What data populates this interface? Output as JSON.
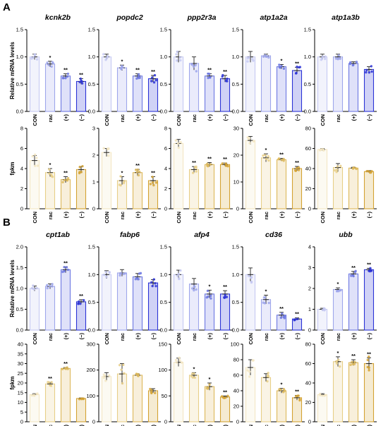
{
  "panels": [
    {
      "letter": "A"
    },
    {
      "letter": "B"
    }
  ],
  "colors": {
    "blue": [
      "#c5c9f2",
      "#9ea6eb",
      "#6c77e2",
      "#2b33d6"
    ],
    "gold": [
      "#f3e6c3",
      "#e7cf88",
      "#ddb85a",
      "#d3a233"
    ]
  },
  "chart_data": [
    {
      "type": "bar",
      "panel": "A",
      "row": 0,
      "col": 0,
      "title": "kcnk2b",
      "ylabel": "Relative mRNA levels",
      "categories": [
        "CON",
        "rac",
        "(+)",
        "(−)"
      ],
      "values": [
        1.0,
        0.87,
        0.65,
        0.55
      ],
      "errors": [
        0.05,
        0.05,
        0.04,
        0.05
      ],
      "significance": [
        "",
        "*",
        "**",
        "**"
      ],
      "ylim": [
        0,
        1.5
      ],
      "yticks": [
        "0.0",
        "0.5",
        "1.0",
        "1.5"
      ],
      "palette": "blue"
    },
    {
      "type": "bar",
      "panel": "A",
      "row": 0,
      "col": 1,
      "title": "popdc2",
      "ylabel": "",
      "categories": [
        "CON",
        "rac",
        "(+)",
        "(−)"
      ],
      "values": [
        1.0,
        0.8,
        0.65,
        0.6
      ],
      "errors": [
        0.05,
        0.05,
        0.04,
        0.06
      ],
      "significance": [
        "",
        "*",
        "**",
        "**"
      ],
      "ylim": [
        0,
        1.5
      ],
      "yticks": [
        "0.0",
        "0.5",
        "1.0",
        "1.5"
      ],
      "palette": "blue"
    },
    {
      "type": "bar",
      "panel": "A",
      "row": 0,
      "col": 2,
      "title": "ppp2r3a",
      "ylabel": "",
      "categories": [
        "CON",
        "rac",
        "(+)",
        "(−)"
      ],
      "values": [
        1.0,
        0.88,
        0.65,
        0.6
      ],
      "errors": [
        0.1,
        0.12,
        0.04,
        0.06
      ],
      "significance": [
        "",
        "",
        "**",
        "**"
      ],
      "ylim": [
        0,
        1.5
      ],
      "yticks": [
        "0.0",
        "0.5",
        "1.0",
        "1.5"
      ],
      "palette": "blue"
    },
    {
      "type": "bar",
      "panel": "A",
      "row": 0,
      "col": 3,
      "title": "atp1a2a",
      "ylabel": "",
      "categories": [
        "CON",
        "rac",
        "(+)",
        "(−)"
      ],
      "values": [
        1.0,
        1.02,
        0.82,
        0.75
      ],
      "errors": [
        0.1,
        0.03,
        0.04,
        0.06
      ],
      "significance": [
        "",
        "",
        "*",
        "**"
      ],
      "ylim": [
        0,
        1.5
      ],
      "yticks": [
        "0.0",
        "0.5",
        "1.0",
        "1.5"
      ],
      "palette": "blue"
    },
    {
      "type": "bar",
      "panel": "A",
      "row": 0,
      "col": 4,
      "title": "atp1a3b",
      "ylabel": "",
      "categories": [
        "CON",
        "rac",
        "(+)",
        "(−)"
      ],
      "values": [
        1.0,
        1.0,
        0.88,
        0.77
      ],
      "errors": [
        0.05,
        0.05,
        0.03,
        0.05
      ],
      "significance": [
        "",
        "",
        "",
        ""
      ],
      "ylim": [
        0,
        1.5
      ],
      "yticks": [
        "0.0",
        "0.5",
        "1.0",
        "1.5"
      ],
      "palette": "blue"
    },
    {
      "type": "bar",
      "panel": "A",
      "row": 1,
      "col": 0,
      "title": "",
      "ylabel": "fpkm",
      "categories": [
        "CON",
        "rac",
        "(+)",
        "(−)"
      ],
      "values": [
        4.8,
        3.6,
        2.9,
        3.9
      ],
      "errors": [
        0.5,
        0.4,
        0.3,
        0.3
      ],
      "significance": [
        "",
        "*",
        "**",
        ""
      ],
      "ylim": [
        0,
        8
      ],
      "yticks": [
        "0",
        "2",
        "4",
        "6",
        "8"
      ],
      "palette": "gold"
    },
    {
      "type": "bar",
      "panel": "A",
      "row": 1,
      "col": 1,
      "title": "",
      "ylabel": "",
      "categories": [
        "CON",
        "rac",
        "(+)",
        "(−)"
      ],
      "values": [
        2.1,
        1.05,
        1.35,
        1.05
      ],
      "errors": [
        0.15,
        0.15,
        0.12,
        0.15
      ],
      "significance": [
        "",
        "*",
        "**",
        "**"
      ],
      "ylim": [
        0,
        3
      ],
      "yticks": [
        "0",
        "1",
        "2",
        "3"
      ],
      "palette": "gold"
    },
    {
      "type": "bar",
      "panel": "A",
      "row": 1,
      "col": 2,
      "title": "",
      "ylabel": "",
      "categories": [
        "CON",
        "rac",
        "(+)",
        "(−)"
      ],
      "values": [
        6.5,
        3.9,
        4.4,
        4.4
      ],
      "errors": [
        0.4,
        0.3,
        0.2,
        0.15
      ],
      "significance": [
        "",
        "**",
        "**",
        "**"
      ],
      "ylim": [
        0,
        8
      ],
      "yticks": [
        "0",
        "2",
        "4",
        "6",
        "8"
      ],
      "palette": "gold"
    },
    {
      "type": "bar",
      "panel": "A",
      "row": 1,
      "col": 3,
      "title": "",
      "ylabel": "",
      "categories": [
        "CON",
        "rac",
        "(+)",
        "(−)"
      ],
      "values": [
        25.5,
        19,
        18.3,
        15
      ],
      "errors": [
        1.5,
        1.5,
        0.5,
        0.8
      ],
      "significance": [
        "",
        "*",
        "**",
        "**"
      ],
      "ylim": [
        0,
        30
      ],
      "yticks": [
        "0",
        "10",
        "20",
        "30"
      ],
      "palette": "gold"
    },
    {
      "type": "bar",
      "panel": "A",
      "row": 1,
      "col": 4,
      "title": "",
      "ylabel": "",
      "categories": [
        "CON",
        "rac",
        "(+)",
        "(−)"
      ],
      "values": [
        59,
        41,
        40.5,
        37
      ],
      "errors": [
        1.0,
        4.0,
        0.8,
        1.0
      ],
      "significance": [
        "",
        "",
        "",
        ""
      ],
      "ylim": [
        0,
        80
      ],
      "yticks": [
        "0",
        "20",
        "40",
        "60",
        "80"
      ],
      "palette": "gold"
    },
    {
      "type": "bar",
      "panel": "B",
      "row": 2,
      "col": 0,
      "title": "cpt1ab",
      "ylabel": "Relative mRNA levels",
      "categories": [
        "CON",
        "rac",
        "(+)",
        "(−)"
      ],
      "values": [
        1.0,
        1.05,
        1.45,
        0.68
      ],
      "errors": [
        0.06,
        0.06,
        0.07,
        0.05
      ],
      "significance": [
        "",
        "",
        "**",
        "**"
      ],
      "ylim": [
        0,
        2.0
      ],
      "yticks": [
        "0.0",
        "0.5",
        "1.0",
        "1.5",
        "2.0"
      ],
      "palette": "blue"
    },
    {
      "type": "bar",
      "panel": "B",
      "row": 2,
      "col": 1,
      "title": "fabp6",
      "ylabel": "",
      "categories": [
        "CON",
        "rac",
        "(+)",
        "(−)"
      ],
      "values": [
        1.0,
        1.03,
        0.96,
        0.85
      ],
      "errors": [
        0.07,
        0.06,
        0.06,
        0.06
      ],
      "significance": [
        "",
        "",
        "",
        ""
      ],
      "ylim": [
        0,
        1.5
      ],
      "yticks": [
        "0.0",
        "0.5",
        "1.0",
        "1.5"
      ],
      "palette": "blue"
    },
    {
      "type": "bar",
      "panel": "B",
      "row": 2,
      "col": 2,
      "title": "afp4",
      "ylabel": "",
      "categories": [
        "CON",
        "rac",
        "(+)",
        "(−)"
      ],
      "values": [
        1.0,
        0.83,
        0.65,
        0.65
      ],
      "errors": [
        0.08,
        0.1,
        0.07,
        0.06
      ],
      "significance": [
        "",
        "",
        "*",
        "**"
      ],
      "ylim": [
        0,
        1.5
      ],
      "yticks": [
        "0.0",
        "0.5",
        "1.0",
        "1.5"
      ],
      "palette": "blue"
    },
    {
      "type": "bar",
      "panel": "B",
      "row": 2,
      "col": 3,
      "title": "cd36",
      "ylabel": "",
      "categories": [
        "CON",
        "rac",
        "(+)",
        "(−)"
      ],
      "values": [
        1.0,
        0.55,
        0.27,
        0.2
      ],
      "errors": [
        0.12,
        0.08,
        0.05,
        0.02
      ],
      "significance": [
        "",
        "*",
        "**",
        "**"
      ],
      "ylim": [
        0,
        1.5
      ],
      "yticks": [
        "0.0",
        "0.5",
        "1.0",
        "1.5"
      ],
      "palette": "blue"
    },
    {
      "type": "bar",
      "panel": "B",
      "row": 2,
      "col": 4,
      "title": "ubb",
      "ylabel": "",
      "categories": [
        "CON",
        "rac",
        "(+)",
        "(−)"
      ],
      "values": [
        1.0,
        1.95,
        2.7,
        2.9
      ],
      "errors": [
        0.05,
        0.08,
        0.12,
        0.07
      ],
      "significance": [
        "",
        "*",
        "**",
        "**"
      ],
      "ylim": [
        0,
        4
      ],
      "yticks": [
        "0",
        "1",
        "2",
        "3",
        "4"
      ],
      "palette": "blue"
    },
    {
      "type": "bar",
      "panel": "B",
      "row": 3,
      "col": 0,
      "title": "",
      "ylabel": "fpkm",
      "categories": [
        "CON",
        "rac",
        "(+)",
        "(−)"
      ],
      "values": [
        14,
        19.5,
        27.5,
        12
      ],
      "errors": [
        0.5,
        0.8,
        0.5,
        0.3
      ],
      "significance": [
        "",
        "**",
        "**",
        ""
      ],
      "ylim": [
        0,
        40
      ],
      "yticks": [
        "0",
        "5",
        "10",
        "15",
        "20",
        "25",
        "30",
        "35",
        "40"
      ],
      "palette": "gold"
    },
    {
      "type": "bar",
      "panel": "B",
      "row": 3,
      "col": 1,
      "title": "",
      "ylabel": "",
      "categories": [
        "CON",
        "rac",
        "(+)",
        "(−)"
      ],
      "values": [
        175,
        185,
        180,
        120
      ],
      "errors": [
        15,
        40,
        5,
        8
      ],
      "significance": [
        "",
        "",
        "",
        ""
      ],
      "ylim": [
        0,
        300
      ],
      "yticks": [
        "0",
        "100",
        "200",
        "300"
      ],
      "palette": "gold"
    },
    {
      "type": "bar",
      "panel": "B",
      "row": 3,
      "col": 2,
      "title": "",
      "ylabel": "",
      "categories": [
        "CON",
        "rac",
        "(+)",
        "(−)"
      ],
      "values": [
        115,
        90,
        68,
        48
      ],
      "errors": [
        8,
        5,
        7,
        2
      ],
      "significance": [
        "",
        "*",
        "*",
        "**"
      ],
      "ylim": [
        0,
        150
      ],
      "yticks": [
        "0",
        "50",
        "100",
        "150"
      ],
      "palette": "gold"
    },
    {
      "type": "bar",
      "panel": "B",
      "row": 3,
      "col": 3,
      "title": "",
      "ylabel": "",
      "categories": [
        "CON",
        "rac",
        "(+)",
        "(−)"
      ],
      "values": [
        70,
        57,
        40,
        31
      ],
      "errors": [
        10,
        5,
        3,
        3
      ],
      "significance": [
        "",
        "",
        "*",
        "**"
      ],
      "ylim": [
        0,
        100
      ],
      "yticks": [
        "0",
        "20",
        "40",
        "60",
        "80",
        "100"
      ],
      "palette": "gold"
    },
    {
      "type": "bar",
      "panel": "B",
      "row": 3,
      "col": 4,
      "title": "",
      "ylabel": "",
      "categories": [
        "CON",
        "rac",
        "(+)",
        "(−)"
      ],
      "values": [
        28,
        62,
        61,
        60
      ],
      "errors": [
        1,
        5,
        3,
        6
      ],
      "significance": [
        "",
        "*",
        "**",
        "**"
      ],
      "ylim": [
        0,
        80
      ],
      "yticks": [
        "0",
        "20",
        "40",
        "60",
        "80"
      ],
      "palette": "gold"
    }
  ]
}
